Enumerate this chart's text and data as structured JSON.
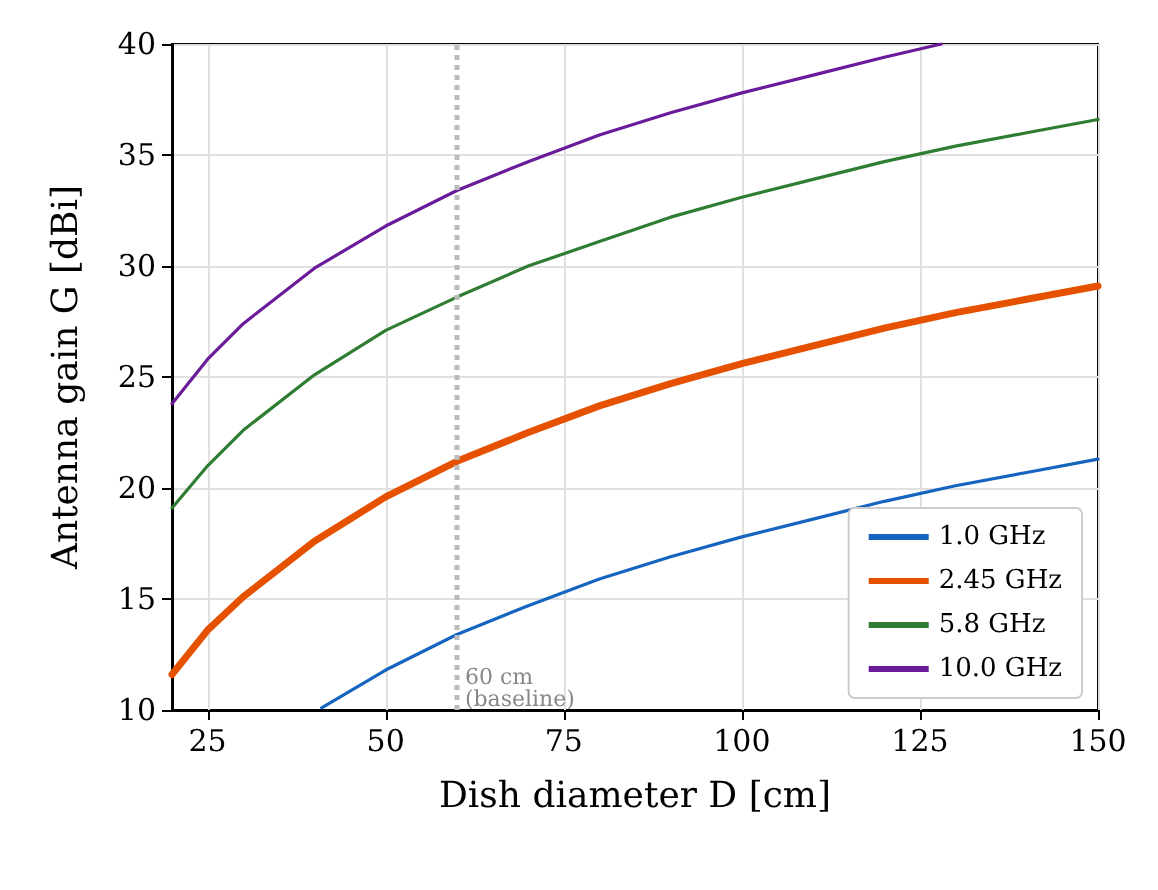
{
  "chart_data": {
    "type": "line",
    "xlabel": "Dish diameter D [cm]",
    "ylabel": "Antenna gain G [dBi]",
    "xlim": [
      20,
      150
    ],
    "xticks": [
      25,
      50,
      75,
      100,
      125,
      150
    ],
    "ylim": [
      10,
      40
    ],
    "yticks": [
      10,
      15,
      20,
      25,
      30,
      35,
      40
    ],
    "grid": true,
    "legend": "bottom right",
    "line_style": "solid",
    "marker": "none",
    "series": [
      {
        "name": "1.0 GHz",
        "color": "#1565c0",
        "x": [
          41,
          50,
          60,
          70,
          80,
          90,
          100,
          110,
          120,
          130,
          140,
          150
        ],
        "values": [
          10.1,
          11.8,
          13.4,
          14.7,
          15.9,
          16.9,
          17.8,
          18.6,
          19.4,
          20.1,
          20.7,
          21.3
        ]
      },
      {
        "name": "2.45 GHz",
        "color": "#e65100",
        "x": [
          20,
          25,
          30,
          40,
          50,
          60,
          70,
          80,
          90,
          100,
          110,
          120,
          130,
          140,
          150
        ],
        "values": [
          11.6,
          13.6,
          15.1,
          17.6,
          19.6,
          21.2,
          22.5,
          23.7,
          24.7,
          25.6,
          26.4,
          27.2,
          27.9,
          28.5,
          29.1
        ]
      },
      {
        "name": "5.8 GHz",
        "color": "#2e7d32",
        "x": [
          20,
          25,
          30,
          40,
          50,
          60,
          70,
          80,
          90,
          100,
          110,
          120,
          130,
          140,
          150
        ],
        "values": [
          19.1,
          21.0,
          22.6,
          25.1,
          27.1,
          28.6,
          30.0,
          31.1,
          32.2,
          33.1,
          33.9,
          34.7,
          35.4,
          36.0,
          36.6
        ]
      },
      {
        "name": "10.0 GHz",
        "color": "#6a1b9a",
        "x": [
          20,
          25,
          30,
          40,
          50,
          60,
          70,
          80,
          90,
          100,
          110,
          120,
          128
        ],
        "values": [
          23.8,
          25.8,
          27.4,
          29.9,
          31.8,
          33.4,
          34.7,
          35.9,
          36.9,
          37.8,
          38.6,
          39.4,
          40.0
        ]
      }
    ],
    "ref_lines": [
      {
        "axis": "x",
        "value": 60,
        "label": "60 cm\n(baseline)",
        "color": "#bbbbbb",
        "line_style": "dotted"
      }
    ]
  }
}
